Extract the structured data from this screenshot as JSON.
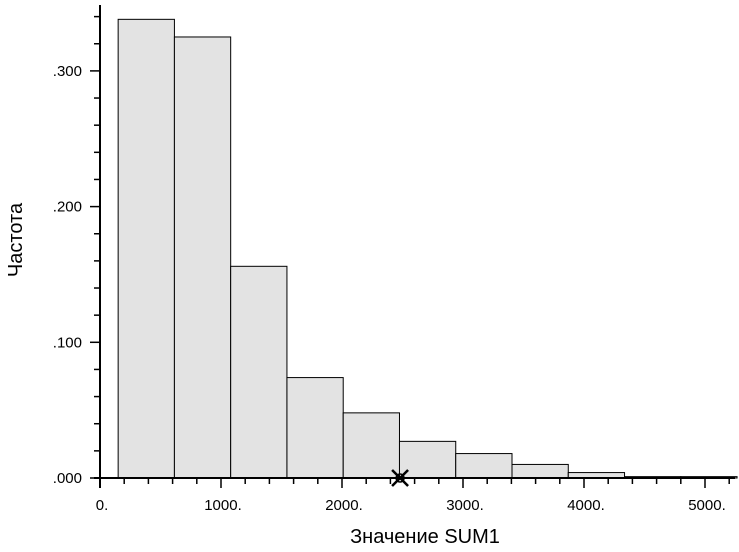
{
  "chart_data": {
    "type": "bar",
    "xlabel": "Значение SUM1",
    "ylabel": "Частота",
    "xlim": [
      0,
      5200
    ],
    "ylim": [
      0,
      0.34
    ],
    "x_tick_values": [
      0,
      1000,
      2000,
      3000,
      4000,
      5000
    ],
    "x_tick_labels": [
      "0.",
      "1000.",
      "2000.",
      "3000.",
      "4000.",
      "5000."
    ],
    "y_tick_values": [
      0,
      0.1,
      0.2,
      0.3
    ],
    "y_tick_labels": [
      ".000",
      ".100",
      ".200",
      ".300"
    ],
    "bins": [
      {
        "x0": 150,
        "x1": 615,
        "value": 0.338
      },
      {
        "x0": 615,
        "x1": 1080,
        "value": 0.325
      },
      {
        "x0": 1080,
        "x1": 1545,
        "value": 0.156
      },
      {
        "x0": 1545,
        "x1": 2010,
        "value": 0.074
      },
      {
        "x0": 2010,
        "x1": 2475,
        "value": 0.048
      },
      {
        "x0": 2475,
        "x1": 2940,
        "value": 0.027
      },
      {
        "x0": 2940,
        "x1": 3405,
        "value": 0.018
      },
      {
        "x0": 3405,
        "x1": 3870,
        "value": 0.01
      },
      {
        "x0": 3870,
        "x1": 4335,
        "value": 0.004
      },
      {
        "x0": 4335,
        "x1": 4800,
        "value": 0.001
      },
      {
        "x0": 4800,
        "x1": 5265,
        "value": 0.001
      }
    ],
    "marker": {
      "symbol": "x",
      "x": 2480,
      "y": 0
    }
  }
}
